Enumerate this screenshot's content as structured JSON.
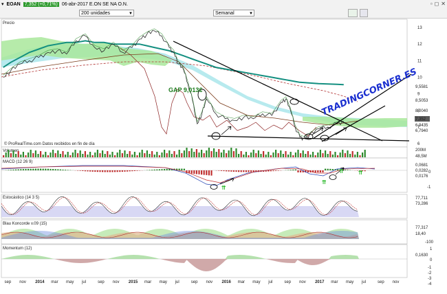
{
  "toolbar": {
    "ticker": "EOAN",
    "change": "7,352 (+0,71%)",
    "date_name": "06-abr-2017  E.ON SE NA O.N.",
    "units": "200 unidades",
    "period": "Semanal"
  },
  "watermark": "TRADINGCORNER.ES",
  "gap_annotation": "GAP 9,013€",
  "source_note": "© ProRealTime.com  Datos recibidos en fin de día",
  "colors": {
    "price": "#2b2b2b",
    "teal_ma": "#138f80",
    "cloud_green": "#a9e89b",
    "cloud_cyan": "#9fe3e8",
    "trend": "#000000",
    "arrow_green": "#1fb51f",
    "watermark": "#1a2fd0",
    "gap_text": "#1d7a1d"
  },
  "chart_data": [
    {
      "name": "Precio",
      "title": "Precio",
      "type": "line",
      "y_ticks": [
        "13",
        "12",
        "11",
        "10",
        "9",
        "8",
        "7",
        "6"
      ],
      "y_range": [
        5.8,
        13.5
      ],
      "right_labels": [
        "9,5581",
        "8,5053",
        "8,0040",
        "7,352",
        "6,9435",
        "6,7940"
      ],
      "x_range": [
        2013.6,
        2017.95
      ],
      "x": [
        2013.62,
        2013.7,
        2013.8,
        2013.9,
        2014.0,
        2014.1,
        2014.2,
        2014.3,
        2014.4,
        2014.5,
        2014.6,
        2014.7,
        2014.8,
        2014.9,
        2015.0,
        2015.08,
        2015.16,
        2015.24,
        2015.32,
        2015.4,
        2015.45,
        2015.5,
        2015.55,
        2015.6,
        2015.65,
        2015.7,
        2015.75,
        2015.8,
        2015.9,
        2016.0,
        2016.1,
        2016.2,
        2016.3,
        2016.4,
        2016.5,
        2016.6,
        2016.65,
        2016.7,
        2016.75,
        2016.8,
        2016.85,
        2016.9,
        2017.0,
        2017.1,
        2017.2,
        2017.27
      ],
      "close": [
        10.0,
        10.4,
        10.8,
        11.0,
        11.2,
        11.5,
        11.6,
        11.4,
        12.2,
        12.5,
        11.8,
        11.6,
        12.0,
        11.5,
        11.8,
        12.3,
        12.6,
        12.8,
        12.5,
        11.8,
        11.5,
        10.8,
        10.5,
        9.6,
        8.6,
        7.2,
        7.8,
        8.7,
        7.8,
        7.5,
        7.4,
        7.6,
        7.5,
        7.8,
        7.7,
        8.5,
        8.7,
        8.0,
        7.0,
        6.4,
        6.3,
        6.5,
        6.9,
        7.0,
        7.2,
        7.35
      ],
      "ma_teal": [
        10.6,
        10.9,
        11.2,
        11.5,
        11.7,
        11.9,
        12.0,
        12.1,
        12.1,
        12.2,
        12.1,
        12.1,
        12.0,
        12.0,
        12.0,
        12.0,
        11.9,
        11.8,
        11.7,
        11.6,
        11.5,
        11.4,
        11.3,
        11.2,
        11.1,
        11.0,
        10.9,
        10.8,
        10.6,
        10.5,
        10.4,
        10.3,
        10.2,
        10.1,
        10.0,
        9.9,
        9.85,
        9.8,
        9.75,
        9.7,
        9.68,
        9.66,
        9.62,
        9.6,
        9.58,
        9.56
      ]
    },
    {
      "name": "Volumen",
      "title": "Volumen",
      "type": "bar",
      "right_labels": [
        "200M",
        "48,5M"
      ]
    },
    {
      "name": "MACD",
      "title": "MACD (12 26 9)",
      "type": "bar",
      "y_ticks": [
        "0",
        "-1"
      ],
      "right_labels": [
        "0,0681",
        "0,0282",
        "0,0176"
      ]
    },
    {
      "name": "Estocastico",
      "title": "Estocástico (14 3 5)",
      "type": "line",
      "right_labels": [
        "77,711",
        "73,286"
      ]
    },
    {
      "name": "Blau",
      "title": "Blau Koncorde v.09 (15)",
      "type": "area",
      "y_ticks": [
        "-100"
      ],
      "right_labels": [
        "77,317",
        "18,40"
      ]
    },
    {
      "name": "Momentum",
      "title": "Momentum (12)",
      "type": "area",
      "y_ticks": [
        "1",
        "0",
        "-1",
        "-2",
        "-3",
        "-4"
      ],
      "right_labels": [
        "0,1630"
      ]
    }
  ],
  "x_axis": {
    "labels": [
      {
        "t": 2013.67,
        "text": "sep",
        "bold": false
      },
      {
        "t": 2013.83,
        "text": "nov",
        "bold": false
      },
      {
        "t": 2014.0,
        "text": "2014",
        "bold": true
      },
      {
        "t": 2014.17,
        "text": "mar",
        "bold": false
      },
      {
        "t": 2014.33,
        "text": "may",
        "bold": false
      },
      {
        "t": 2014.5,
        "text": "jul",
        "bold": false
      },
      {
        "t": 2014.67,
        "text": "sep",
        "bold": false
      },
      {
        "t": 2014.83,
        "text": "nov",
        "bold": false
      },
      {
        "t": 2015.0,
        "text": "2015",
        "bold": true
      },
      {
        "t": 2015.17,
        "text": "mar",
        "bold": false
      },
      {
        "t": 2015.33,
        "text": "may",
        "bold": false
      },
      {
        "t": 2015.5,
        "text": "jul",
        "bold": false
      },
      {
        "t": 2015.67,
        "text": "sep",
        "bold": false
      },
      {
        "t": 2015.83,
        "text": "nov",
        "bold": false
      },
      {
        "t": 2016.0,
        "text": "2016",
        "bold": true
      },
      {
        "t": 2016.17,
        "text": "mar",
        "bold": false
      },
      {
        "t": 2016.33,
        "text": "may",
        "bold": false
      },
      {
        "t": 2016.5,
        "text": "jul",
        "bold": false
      },
      {
        "t": 2016.67,
        "text": "sep",
        "bold": false
      },
      {
        "t": 2016.83,
        "text": "nov",
        "bold": false
      },
      {
        "t": 2017.0,
        "text": "2017",
        "bold": true
      },
      {
        "t": 2017.17,
        "text": "mar",
        "bold": false
      },
      {
        "t": 2017.33,
        "text": "may",
        "bold": false
      },
      {
        "t": 2017.5,
        "text": "jul",
        "bold": false
      },
      {
        "t": 2017.67,
        "text": "sep",
        "bold": false
      },
      {
        "t": 2017.83,
        "text": "nov",
        "bold": false
      }
    ]
  }
}
